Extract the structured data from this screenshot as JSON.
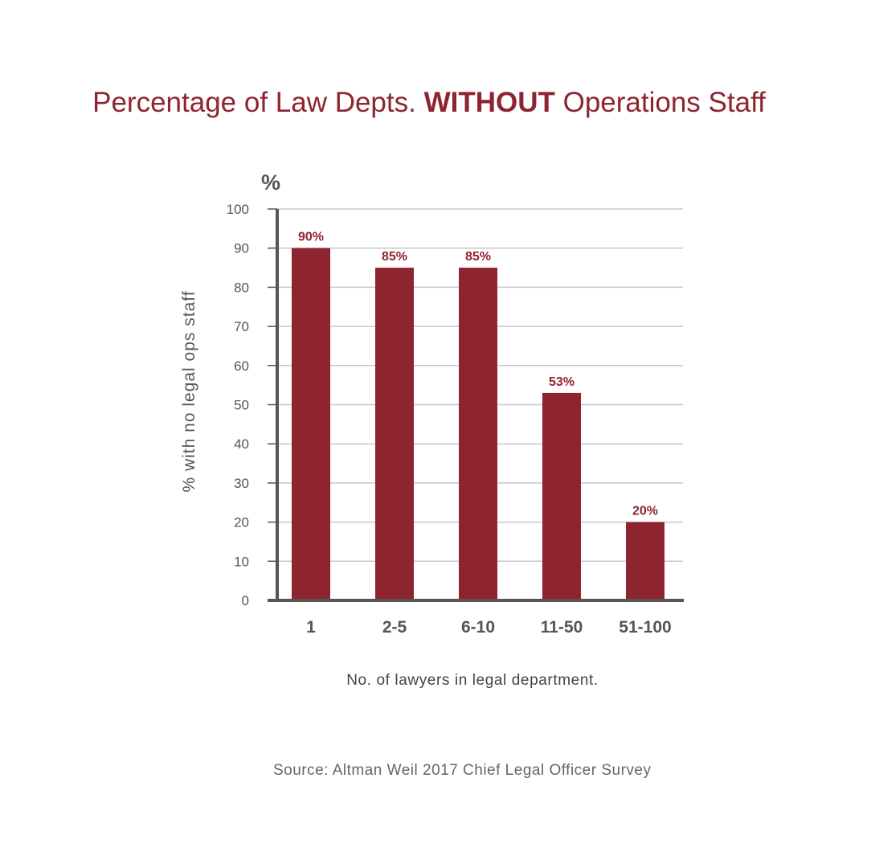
{
  "title": {
    "part1": "Percentage of Law Depts. ",
    "emphasis": "WITHOUT",
    "part2": " Operations Staff"
  },
  "source": "Source: Altman Weil 2017 Chief Legal Officer Survey",
  "colors": {
    "bar": "#8e2430",
    "title": "#8e2430",
    "axis": "#555555",
    "grid": "#c8c8c8",
    "tick_text": "#555555"
  },
  "chart_data": {
    "type": "bar",
    "categories": [
      "1",
      "2-5",
      "6-10",
      "11-50",
      "51-100"
    ],
    "values": [
      90,
      85,
      85,
      53,
      20
    ],
    "value_labels": [
      "90%",
      "85%",
      "85%",
      "53%",
      "20%"
    ],
    "y_unit_label": "%",
    "ylabel": "% with no legal ops staff",
    "xlabel": "No. of lawyers in legal department.",
    "ylim": [
      0,
      100
    ],
    "yticks": [
      0,
      10,
      20,
      30,
      40,
      50,
      60,
      70,
      80,
      90,
      100
    ],
    "grid": true,
    "legend": "none"
  }
}
